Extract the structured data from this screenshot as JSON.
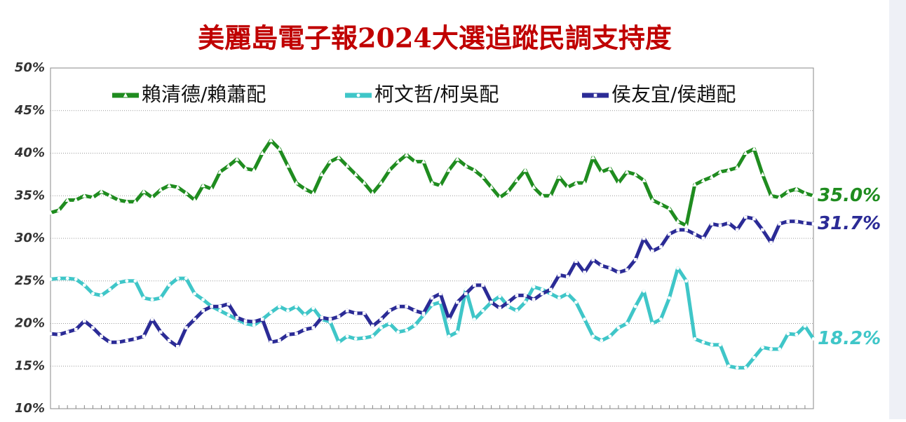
{
  "chart_data": {
    "type": "line",
    "title": "美麗島電子報2024大選追蹤民調支持度",
    "categories": [
      null,
      null,
      null,
      null,
      null,
      null,
      null,
      null,
      null,
      null,
      null,
      null,
      null,
      null,
      null,
      null,
      null,
      null,
      null,
      null,
      null,
      null,
      null,
      null,
      null,
      null,
      null,
      null,
      null,
      null,
      null,
      null,
      null,
      null,
      null,
      null,
      null,
      null,
      null,
      null,
      null,
      null,
      null,
      null,
      null,
      null,
      null,
      null,
      null,
      null,
      null,
      null,
      null,
      null,
      null,
      null,
      null,
      null,
      null,
      null,
      null,
      null,
      null,
      null,
      null,
      null,
      null,
      null,
      null,
      null,
      null,
      null,
      null,
      null,
      null,
      null,
      null,
      null,
      null,
      null,
      null,
      null,
      null,
      null,
      null,
      null,
      null,
      null,
      null,
      null,
      null
    ],
    "ylim": [
      10,
      50
    ],
    "yticks": [
      {
        "value": 10,
        "label": "10%"
      },
      {
        "value": 15,
        "label": "15%"
      },
      {
        "value": 20,
        "label": "20%"
      },
      {
        "value": 25,
        "label": "25%"
      },
      {
        "value": 30,
        "label": "30%"
      },
      {
        "value": 35,
        "label": "35%"
      },
      {
        "value": 40,
        "label": "40%"
      },
      {
        "value": 45,
        "label": "45%"
      },
      {
        "value": 50,
        "label": "50%"
      }
    ],
    "grid": true,
    "series": [
      {
        "name": "賴清德/賴蕭配",
        "color": "#1f8c1f",
        "marker": "triangle",
        "end_label": "35.0%",
        "values": [
          33,
          33.3,
          34.5,
          34.5,
          35,
          34.8,
          35.5,
          35,
          34.5,
          34.3,
          34.3,
          35.5,
          34.8,
          35.7,
          36.2,
          36,
          35.3,
          34.5,
          36.2,
          35.8,
          37.8,
          38.5,
          39.3,
          38.2,
          38,
          40,
          41.5,
          40.5,
          38.5,
          36.5,
          35.8,
          35.3,
          37.5,
          39,
          39.5,
          38.5,
          37.5,
          36.5,
          35.3,
          36.5,
          38,
          39,
          39.8,
          39,
          39,
          36.5,
          36.2,
          38,
          39.3,
          38.5,
          38,
          37.2,
          36,
          34.8,
          35.5,
          36.8,
          38,
          36,
          35,
          35,
          37.2,
          36,
          36.5,
          36.5,
          39.5,
          37.8,
          38.2,
          36.5,
          37.8,
          37.5,
          36.8,
          34.5,
          34,
          33.5,
          32,
          31.5,
          36.3,
          36.8,
          37.2,
          37.8,
          38,
          38.3,
          40,
          40.5,
          37.5,
          35,
          34.8,
          35.5,
          35.8,
          35.3,
          35
        ]
      },
      {
        "name": "柯文哲/柯吳配",
        "color": "#3fc6c8",
        "marker": "circle",
        "end_label": "18.2%",
        "values": [
          25.2,
          25.3,
          25.3,
          25.2,
          24.5,
          23.5,
          23.3,
          24,
          24.8,
          25,
          25,
          23,
          22.8,
          23,
          24.5,
          25.3,
          25.3,
          23.5,
          22.8,
          22,
          21.5,
          21,
          20.5,
          20,
          19.8,
          20.5,
          21.3,
          22,
          21.5,
          22,
          21,
          21.8,
          20.5,
          20.2,
          17.8,
          18.5,
          18.2,
          18.3,
          18.5,
          19.5,
          20,
          19,
          19.2,
          19.8,
          21,
          22.2,
          22.5,
          18.5,
          19,
          24,
          20.5,
          21.5,
          22.5,
          23.2,
          22,
          21.5,
          22.5,
          24.3,
          24,
          23.5,
          23,
          23.5,
          22.5,
          20.5,
          18.5,
          18,
          18.5,
          19.5,
          20,
          22,
          23.8,
          20,
          20.5,
          23,
          26.5,
          25,
          18.2,
          17.8,
          17.5,
          17.5,
          15,
          14.8,
          14.8,
          16,
          17.2,
          17,
          17,
          18.8,
          18.7,
          19.7,
          18.2
        ]
      },
      {
        "name": "侯友宜/侯趙配",
        "color": "#2b2b96",
        "marker": "square",
        "end_label": "31.7%",
        "values": [
          18.8,
          18.7,
          19,
          19.3,
          20.3,
          19.5,
          18.5,
          17.8,
          17.8,
          18,
          18.2,
          18.5,
          20.5,
          19,
          18,
          17.3,
          19.5,
          20.5,
          21.5,
          22,
          22,
          22.3,
          20.7,
          20.3,
          20.2,
          20.5,
          17.8,
          18,
          18.7,
          18.8,
          19.3,
          19.5,
          20.7,
          20.5,
          20.8,
          21.5,
          21.2,
          21.2,
          19.7,
          20.5,
          21.5,
          22,
          22,
          21.5,
          21.2,
          23,
          23.5,
          20.5,
          22.5,
          23.5,
          24.5,
          24.5,
          22.5,
          21.8,
          22.5,
          23.3,
          23.3,
          22.8,
          23.5,
          24,
          25.7,
          25.5,
          27.3,
          26,
          27.5,
          26.8,
          26.5,
          26,
          26.3,
          27.5,
          30,
          28.5,
          29,
          30.5,
          31,
          31,
          30.5,
          30,
          31.7,
          31.5,
          31.8,
          31,
          32.5,
          32.3,
          31,
          29.5,
          31.7,
          32,
          32,
          31.8,
          31.7
        ]
      }
    ]
  }
}
